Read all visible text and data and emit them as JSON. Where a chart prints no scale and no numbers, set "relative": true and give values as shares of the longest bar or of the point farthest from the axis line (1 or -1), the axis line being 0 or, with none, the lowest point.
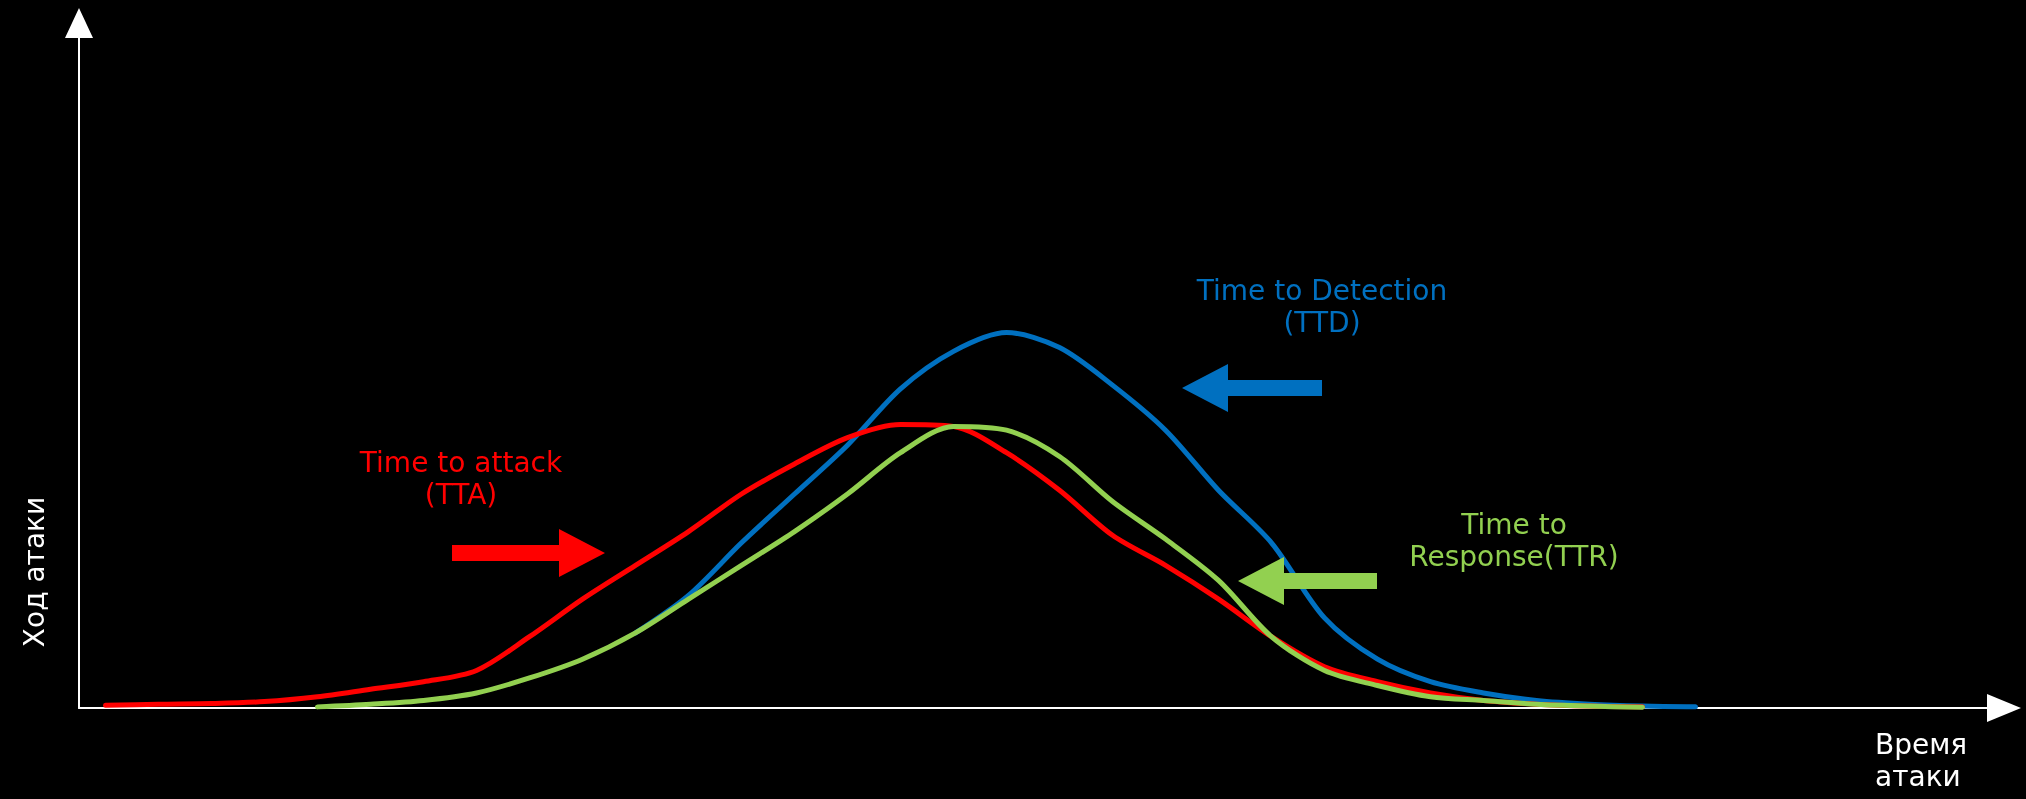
{
  "chart_data": {
    "type": "line",
    "relative": true,
    "xlabel": "Время атаки",
    "ylabel": "Ход атаки",
    "grid": false,
    "legend": false,
    "marker": "none",
    "line_style": "solid",
    "categories": [
      null,
      null,
      null,
      null,
      null,
      null,
      null,
      null,
      null,
      null,
      null,
      null,
      null,
      null,
      null,
      null,
      null,
      null,
      null,
      null,
      null,
      null,
      null,
      null,
      null,
      null,
      null,
      null,
      null,
      null,
      null,
      null,
      null,
      null,
      null,
      null
    ],
    "series": [
      {
        "name": "Time to Detection\n(TTD)",
        "color": "#0070c0",
        "values": [
          null,
          null,
          null,
          null,
          null,
          null,
          null,
          null,
          null,
          null,
          0.2,
          0.3,
          0.44,
          0.57,
          0.7,
          0.85,
          0.95,
          1,
          0.96,
          0.86,
          0.74,
          0.58,
          0.44,
          0.24,
          0.13,
          0.07,
          0.04,
          0.02,
          0.01,
          0.005,
          0.003,
          null,
          null,
          null,
          null,
          null
        ]
      },
      {
        "name": "Time to attack\n(TTA)",
        "color": "#ff0000",
        "values": [
          0.007,
          0.01,
          0.012,
          0.017,
          0.03,
          0.05,
          0.07,
          0.1,
          0.19,
          0.29,
          0.38,
          0.47,
          0.57,
          0.65,
          0.72,
          0.755,
          0.75,
          0.68,
          0.58,
          0.46,
          0.38,
          0.29,
          0.19,
          0.11,
          0.07,
          0.04,
          0.02,
          0.01,
          0.005,
          0.003,
          null,
          null,
          null,
          null,
          null,
          null
        ]
      },
      {
        "name": "Time to\nResponse(TTR)",
        "color": "#92d050",
        "values": [
          null,
          null,
          null,
          null,
          0.003,
          0.01,
          0.02,
          0.04,
          0.08,
          0.13,
          0.2,
          0.29,
          0.38,
          0.47,
          0.57,
          0.68,
          0.75,
          0.74,
          0.67,
          0.55,
          0.45,
          0.34,
          0.19,
          0.1,
          0.06,
          0.03,
          0.02,
          0.01,
          0.005,
          0.002,
          null,
          null,
          null,
          null,
          null,
          null
        ]
      }
    ]
  }
}
